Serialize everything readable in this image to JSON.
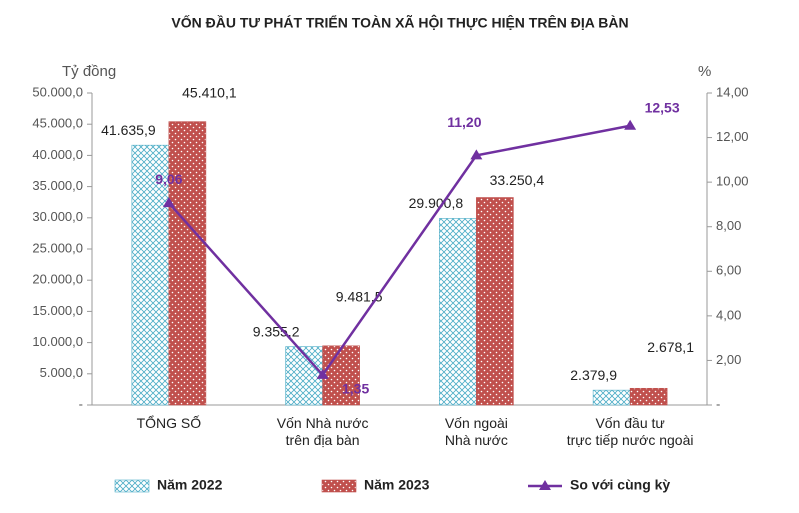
{
  "chart_data": {
    "type": "bar_line",
    "title": "VỐN ĐẦU TƯ PHÁT TRIỂN TOÀN XÃ HỘI THỰC HIỆN TRÊN ĐỊA BÀN",
    "y_label": "Tỷ đồng",
    "y2_label": "%",
    "categories": [
      "TỔNG SỐ",
      "Vốn Nhà nước\ntrên địa bàn",
      "Vốn ngoài\nNhà nước",
      "Vốn đầu tư\ntrực tiếp nước ngoài"
    ],
    "series": [
      {
        "name": "Năm 2022",
        "color": "#4bacc6",
        "values": [
          41635.9,
          9355.2,
          29900.8,
          2379.9
        ],
        "value_labels": [
          "41.635,9",
          "9.355,2",
          "29.900,8",
          "2.379,9"
        ]
      },
      {
        "name": "Năm 2023",
        "color": "#c0504d",
        "values": [
          45410.1,
          9481.5,
          33250.4,
          2678.1
        ],
        "value_labels": [
          "45.410,1",
          "9.481,5",
          "33.250,4",
          "2.678,1"
        ]
      },
      {
        "name": "So với cùng kỳ",
        "color": "#7030a0",
        "type": "line",
        "axis": "y2",
        "values": [
          9.06,
          1.35,
          11.2,
          12.53
        ],
        "value_labels": [
          "9,06",
          "1,35",
          "11,20",
          "12,53"
        ]
      }
    ],
    "ylim": [
      0,
      50000
    ],
    "yticks": [
      {
        "value": 0,
        "label": "-"
      },
      {
        "value": 5000,
        "label": "5.000,0"
      },
      {
        "value": 10000,
        "label": "10.000,0"
      },
      {
        "value": 15000,
        "label": "15.000,0"
      },
      {
        "value": 20000,
        "label": "20.000,0"
      },
      {
        "value": 25000,
        "label": "25.000,0"
      },
      {
        "value": 30000,
        "label": "30.000,0"
      },
      {
        "value": 35000,
        "label": "35.000,0"
      },
      {
        "value": 40000,
        "label": "40.000,0"
      },
      {
        "value": 45000,
        "label": "45.000,0"
      },
      {
        "value": 50000,
        "label": "50.000,0"
      }
    ],
    "y2lim": [
      0,
      14
    ],
    "y2ticks": [
      {
        "value": 0,
        "label": "-"
      },
      {
        "value": 2,
        "label": "2,00"
      },
      {
        "value": 4,
        "label": "4,00"
      },
      {
        "value": 6,
        "label": "6,00"
      },
      {
        "value": 8,
        "label": "8,00"
      },
      {
        "value": 10,
        "label": "10,00"
      },
      {
        "value": 12,
        "label": "12,00"
      },
      {
        "value": 14,
        "label": "14,00"
      }
    ],
    "legend": "bottom"
  }
}
